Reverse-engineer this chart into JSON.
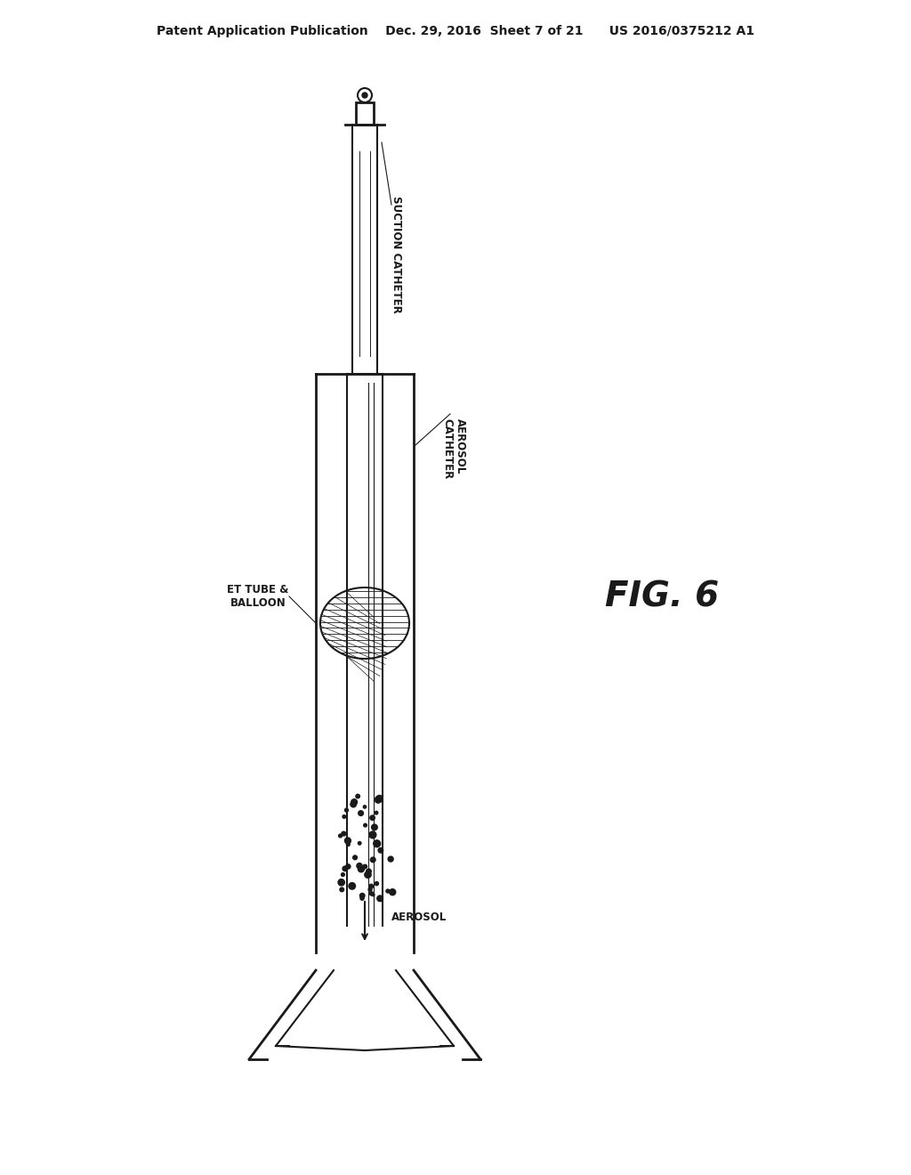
{
  "bg_color": "#ffffff",
  "line_color": "#1a1a1a",
  "header_text": "Patent Application Publication    Dec. 29, 2016  Sheet 7 of 21      US 2016/0375212 A1",
  "fig_label": "FIG. 6",
  "labels": {
    "suction_catheter": "SUCTION CATHETER",
    "aerosol_catheter": "AEROSOL\nCATHETER",
    "et_tube": "ET TUBE &\nBALLOON",
    "aerosol": "AEROSOL"
  },
  "fig_label_fontsize": 28,
  "header_fontsize": 10,
  "label_fontsize": 8.5
}
